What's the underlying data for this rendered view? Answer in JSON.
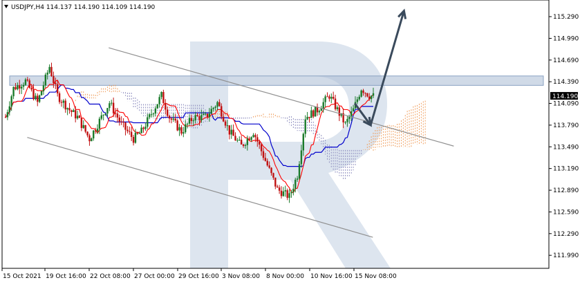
{
  "header": {
    "symbol_line": "USDJPY,H4  114.137 114.190 114.109 114.190"
  },
  "colors": {
    "bull": "#1a7a2a",
    "bear": "#c01010",
    "tenkan": "#ff0000",
    "kijun": "#0000cc",
    "cloud": "#f0a060",
    "cloud_bear": "#9090c0",
    "channel": "#909090",
    "arrow": "#3a4a5c",
    "zone": "#a9bcd4",
    "watermark": "#dde5ef",
    "price_tag_bg": "#000000",
    "price_tag_fg": "#ffffff"
  },
  "current_price": "114.190",
  "chart_data": {
    "type": "candlestick",
    "title": "USDJPY,H4",
    "ylim": [
      111.81,
      115.52
    ],
    "ytick_labels": [
      "115.290",
      "114.990",
      "114.690",
      "114.390",
      "114.090",
      "113.790",
      "113.490",
      "113.190",
      "112.890",
      "112.590",
      "112.290",
      "111.990"
    ],
    "ytick_values": [
      115.29,
      114.99,
      114.69,
      114.39,
      114.09,
      113.79,
      113.49,
      113.19,
      112.89,
      112.59,
      112.29,
      111.99
    ],
    "xtick_labels": [
      "15 Oct 2021",
      "19 Oct 16:00",
      "22 Oct 08:00",
      "27 Oct 00:00",
      "29 Oct 16:00",
      "3 Nov 08:00",
      "8 Nov 00:00",
      "10 Nov 16:00",
      "15 Nov 08:00"
    ],
    "resistance_zone": [
      114.34,
      114.47
    ],
    "channel_upper": [
      [
        0.195,
        114.86
      ],
      [
        0.826,
        113.5
      ]
    ],
    "channel_lower": [
      [
        0.046,
        113.62
      ],
      [
        0.678,
        112.24
      ]
    ],
    "forecast_path": [
      [
        0.645,
        114.09
      ],
      [
        0.674,
        113.79
      ],
      [
        0.735,
        115.37
      ]
    ]
  }
}
